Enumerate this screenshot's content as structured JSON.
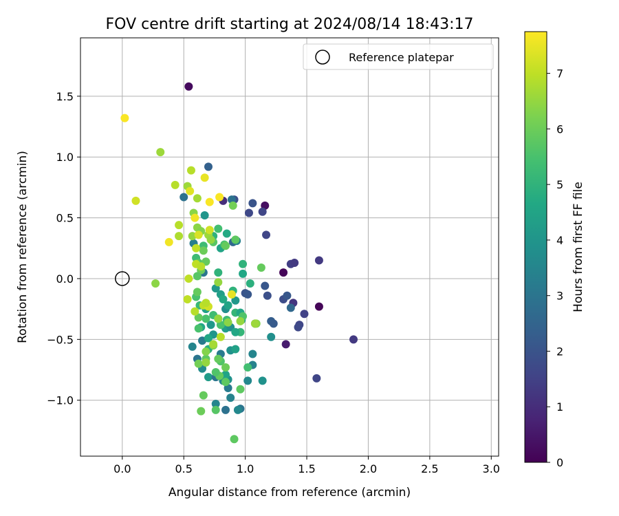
{
  "chart_data": {
    "type": "scatter",
    "title": "FOV centre drift starting at 2024/08/14 18:43:17",
    "xlabel": "Angular distance from reference (arcmin)",
    "ylabel": "Rotation from reference (arcmin)",
    "colorbar_label": "Hours from first FF file",
    "xlim": [
      -0.34,
      3.06
    ],
    "ylim": [
      -1.46,
      1.98
    ],
    "x_ticks": [
      0.0,
      0.5,
      1.0,
      1.5,
      2.0,
      2.5,
      3.0
    ],
    "x_tick_labels": [
      "0.0",
      "0.5",
      "1.0",
      "1.5",
      "2.0",
      "2.5",
      "3.0"
    ],
    "y_ticks": [
      -1.0,
      -0.5,
      0.0,
      0.5,
      1.0,
      1.5
    ],
    "y_tick_labels": [
      "−1.0",
      "−0.5",
      "0.0",
      "0.5",
      "1.0",
      "1.5"
    ],
    "colorbar_range": [
      0,
      7.75
    ],
    "colorbar_ticks": [
      0,
      1,
      2,
      3,
      4,
      5,
      6,
      7
    ],
    "colorbar_tick_labels": [
      "0",
      "1",
      "2",
      "3",
      "4",
      "5",
      "6",
      "7"
    ],
    "colormap": "viridis",
    "grid": true,
    "legend": {
      "placement": "top-right",
      "label": "Reference platepar"
    },
    "reference_point": {
      "x": 0.0,
      "y": 0.0
    },
    "series": [
      {
        "points": [
          {
            "x": 0.54,
            "y": 1.58,
            "c": 0.2
          },
          {
            "x": 1.16,
            "y": 0.6,
            "c": 0.3
          },
          {
            "x": 1.31,
            "y": 0.05,
            "c": 0.1
          },
          {
            "x": 1.6,
            "y": -0.23,
            "c": 0.1
          },
          {
            "x": 1.33,
            "y": -0.54,
            "c": 0.6
          },
          {
            "x": 1.88,
            "y": -0.5,
            "c": 1.3
          },
          {
            "x": 1.58,
            "y": -0.82,
            "c": 1.6
          },
          {
            "x": 1.6,
            "y": 0.15,
            "c": 1.3
          },
          {
            "x": 1.37,
            "y": 0.12,
            "c": 1.4
          },
          {
            "x": 1.4,
            "y": 0.13,
            "c": 1.3
          },
          {
            "x": 1.48,
            "y": -0.29,
            "c": 1.5
          },
          {
            "x": 1.44,
            "y": -0.38,
            "c": 1.6
          },
          {
            "x": 1.43,
            "y": -0.4,
            "c": 1.7
          },
          {
            "x": 1.39,
            "y": -0.2,
            "c": 1.2
          },
          {
            "x": 1.31,
            "y": -0.17,
            "c": 1.8
          },
          {
            "x": 1.34,
            "y": -0.14,
            "c": 2.1
          },
          {
            "x": 1.37,
            "y": -0.24,
            "c": 2.6
          },
          {
            "x": 1.17,
            "y": 0.36,
            "c": 1.6
          },
          {
            "x": 1.14,
            "y": 0.55,
            "c": 1.6
          },
          {
            "x": 1.06,
            "y": 0.62,
            "c": 2.0
          },
          {
            "x": 1.03,
            "y": 0.54,
            "c": 1.7
          },
          {
            "x": 0.91,
            "y": 0.65,
            "c": 1.9
          },
          {
            "x": 0.82,
            "y": 0.64,
            "c": 1.0
          },
          {
            "x": 0.7,
            "y": 0.92,
            "c": 2.4
          },
          {
            "x": 0.5,
            "y": 0.67,
            "c": 2.9
          },
          {
            "x": 1.16,
            "y": -0.06,
            "c": 2.1
          },
          {
            "x": 1.18,
            "y": -0.14,
            "c": 1.9
          },
          {
            "x": 1.21,
            "y": -0.35,
            "c": 2.3
          },
          {
            "x": 1.23,
            "y": -0.37,
            "c": 2.2
          },
          {
            "x": 1.08,
            "y": -0.37,
            "c": 2.6
          },
          {
            "x": 1.0,
            "y": -0.12,
            "c": 2.0
          },
          {
            "x": 1.02,
            "y": -0.13,
            "c": 2.1
          },
          {
            "x": 1.21,
            "y": -0.48,
            "c": 3.8
          },
          {
            "x": 1.14,
            "y": -0.84,
            "c": 3.9
          },
          {
            "x": 1.06,
            "y": -0.71,
            "c": 3.4
          },
          {
            "x": 1.02,
            "y": -0.84,
            "c": 3.6
          },
          {
            "x": 1.06,
            "y": -0.62,
            "c": 3.5
          },
          {
            "x": 0.96,
            "y": -1.07,
            "c": 3.0
          },
          {
            "x": 0.94,
            "y": -1.08,
            "c": 3.6
          },
          {
            "x": 0.84,
            "y": -1.08,
            "c": 2.9
          },
          {
            "x": 0.76,
            "y": -1.03,
            "c": 3.5
          },
          {
            "x": 0.88,
            "y": -0.98,
            "c": 3.4
          },
          {
            "x": 0.86,
            "y": -0.9,
            "c": 3.2
          },
          {
            "x": 0.9,
            "y": 0.3,
            "c": 2.6
          },
          {
            "x": 0.93,
            "y": 0.31,
            "c": 3.4
          },
          {
            "x": 0.89,
            "y": 0.65,
            "c": 2.9
          },
          {
            "x": 0.58,
            "y": 0.29,
            "c": 3.3
          },
          {
            "x": 0.66,
            "y": 0.05,
            "c": 3.0
          },
          {
            "x": 0.67,
            "y": 0.52,
            "c": 4.0
          },
          {
            "x": 0.8,
            "y": 0.25,
            "c": 4.5
          },
          {
            "x": 0.85,
            "y": 0.37,
            "c": 4.7
          },
          {
            "x": 0.83,
            "y": 0.28,
            "c": 5.5
          },
          {
            "x": 0.98,
            "y": 0.12,
            "c": 5.0
          },
          {
            "x": 0.98,
            "y": 0.04,
            "c": 4.6
          },
          {
            "x": 1.04,
            "y": -0.04,
            "c": 4.9
          },
          {
            "x": 0.97,
            "y": -0.34,
            "c": 4.4
          },
          {
            "x": 0.92,
            "y": -0.18,
            "c": 4.1
          },
          {
            "x": 0.9,
            "y": -0.1,
            "c": 5.0
          },
          {
            "x": 0.84,
            "y": -0.25,
            "c": 3.8
          },
          {
            "x": 0.78,
            "y": -0.33,
            "c": 4.8
          },
          {
            "x": 0.72,
            "y": -0.38,
            "c": 4.1
          },
          {
            "x": 0.68,
            "y": -0.33,
            "c": 5.5
          },
          {
            "x": 0.64,
            "y": -0.4,
            "c": 4.6
          },
          {
            "x": 0.7,
            "y": -0.58,
            "c": 4.9
          },
          {
            "x": 0.65,
            "y": -0.51,
            "c": 3.2
          },
          {
            "x": 0.57,
            "y": -0.56,
            "c": 3.5
          },
          {
            "x": 0.61,
            "y": -0.66,
            "c": 3.0
          },
          {
            "x": 0.65,
            "y": -0.74,
            "c": 3.7
          },
          {
            "x": 0.7,
            "y": -0.81,
            "c": 4.2
          },
          {
            "x": 0.76,
            "y": -0.81,
            "c": 3.0
          },
          {
            "x": 0.82,
            "y": -0.84,
            "c": 3.5
          },
          {
            "x": 0.86,
            "y": -0.83,
            "c": 3.9
          },
          {
            "x": 0.84,
            "y": -0.79,
            "c": 4.5
          },
          {
            "x": 0.8,
            "y": -0.62,
            "c": 3.2
          },
          {
            "x": 0.88,
            "y": -0.59,
            "c": 3.9
          },
          {
            "x": 0.92,
            "y": -0.58,
            "c": 4.4
          },
          {
            "x": 0.84,
            "y": -0.41,
            "c": 4.3
          },
          {
            "x": 0.88,
            "y": -0.4,
            "c": 3.8
          },
          {
            "x": 0.74,
            "y": -0.46,
            "c": 4.0
          },
          {
            "x": 0.7,
            "y": -0.49,
            "c": 4.6
          },
          {
            "x": 0.74,
            "y": 0.35,
            "c": 5.0
          },
          {
            "x": 0.78,
            "y": 0.05,
            "c": 5.0
          },
          {
            "x": 0.76,
            "y": -0.08,
            "c": 4.1
          },
          {
            "x": 0.8,
            "y": -0.13,
            "c": 4.3
          },
          {
            "x": 0.82,
            "y": -0.17,
            "c": 4.7
          },
          {
            "x": 0.86,
            "y": -0.22,
            "c": 4.5
          },
          {
            "x": 0.92,
            "y": -0.28,
            "c": 5.1
          },
          {
            "x": 0.96,
            "y": -0.28,
            "c": 4.6
          },
          {
            "x": 0.98,
            "y": -0.31,
            "c": 5.6
          },
          {
            "x": 0.96,
            "y": -0.44,
            "c": 5.1
          },
          {
            "x": 0.92,
            "y": -0.44,
            "c": 4.6
          },
          {
            "x": 0.85,
            "y": -0.34,
            "c": 5.3
          },
          {
            "x": 0.8,
            "y": -0.38,
            "c": 5.5
          },
          {
            "x": 0.74,
            "y": -0.3,
            "c": 5.3
          },
          {
            "x": 0.68,
            "y": -0.25,
            "c": 4.4
          },
          {
            "x": 0.63,
            "y": -0.22,
            "c": 5.2
          },
          {
            "x": 0.6,
            "y": -0.15,
            "c": 5.5
          },
          {
            "x": 0.62,
            "y": -0.32,
            "c": 5.9
          },
          {
            "x": 0.62,
            "y": -0.41,
            "c": 5.5
          },
          {
            "x": 0.66,
            "y": 0.27,
            "c": 5.3
          },
          {
            "x": 0.6,
            "y": 0.17,
            "c": 5.3
          },
          {
            "x": 0.62,
            "y": 0.13,
            "c": 5.7
          },
          {
            "x": 0.66,
            "y": 0.23,
            "c": 6.0
          },
          {
            "x": 0.68,
            "y": 0.14,
            "c": 5.9
          },
          {
            "x": 0.64,
            "y": 0.07,
            "c": 6.0
          },
          {
            "x": 0.61,
            "y": 0.02,
            "c": 5.7
          },
          {
            "x": 0.74,
            "y": 0.3,
            "c": 5.7
          },
          {
            "x": 0.78,
            "y": 0.41,
            "c": 5.4
          },
          {
            "x": 0.84,
            "y": 0.27,
            "c": 5.9
          },
          {
            "x": 0.9,
            "y": 0.6,
            "c": 6.1
          },
          {
            "x": 0.92,
            "y": 0.32,
            "c": 5.8
          },
          {
            "x": 1.13,
            "y": 0.09,
            "c": 5.9
          },
          {
            "x": 1.09,
            "y": -0.37,
            "c": 6.3
          },
          {
            "x": 1.02,
            "y": -0.73,
            "c": 5.4
          },
          {
            "x": 0.96,
            "y": -0.91,
            "c": 5.8
          },
          {
            "x": 0.91,
            "y": -1.32,
            "c": 5.8
          },
          {
            "x": 0.84,
            "y": -0.85,
            "c": 5.8
          },
          {
            "x": 0.79,
            "y": -0.8,
            "c": 5.9
          },
          {
            "x": 0.76,
            "y": -0.77,
            "c": 5.6
          },
          {
            "x": 0.8,
            "y": -0.68,
            "c": 5.6
          },
          {
            "x": 0.84,
            "y": -0.73,
            "c": 6.0
          },
          {
            "x": 0.78,
            "y": -0.66,
            "c": 5.9
          },
          {
            "x": 0.74,
            "y": -0.55,
            "c": 6.2
          },
          {
            "x": 0.68,
            "y": -0.66,
            "c": 5.8
          },
          {
            "x": 0.68,
            "y": -0.6,
            "c": 6.3
          },
          {
            "x": 0.62,
            "y": -0.7,
            "c": 6.1
          },
          {
            "x": 0.66,
            "y": -0.96,
            "c": 5.9
          },
          {
            "x": 0.64,
            "y": -1.09,
            "c": 6.0
          },
          {
            "x": 0.76,
            "y": -1.08,
            "c": 5.7
          },
          {
            "x": 0.61,
            "y": -0.11,
            "c": 5.9
          },
          {
            "x": 0.58,
            "y": 0.54,
            "c": 6.4
          },
          {
            "x": 0.57,
            "y": 0.35,
            "c": 6.5
          },
          {
            "x": 0.7,
            "y": 0.36,
            "c": 6.6
          },
          {
            "x": 0.72,
            "y": 0.32,
            "c": 6.5
          },
          {
            "x": 0.61,
            "y": 0.42,
            "c": 6.4
          },
          {
            "x": 0.64,
            "y": 0.39,
            "c": 6.3
          },
          {
            "x": 0.78,
            "y": -0.03,
            "c": 6.5
          },
          {
            "x": 0.78,
            "y": -0.33,
            "c": 6.5
          },
          {
            "x": 0.86,
            "y": -0.36,
            "c": 6.4
          },
          {
            "x": 0.96,
            "y": -0.35,
            "c": 6.5
          },
          {
            "x": 1.08,
            "y": -0.37,
            "c": 6.6
          },
          {
            "x": 0.8,
            "y": -0.48,
            "c": 6.9
          },
          {
            "x": 0.74,
            "y": -0.54,
            "c": 6.7
          },
          {
            "x": 0.68,
            "y": -0.69,
            "c": 6.5
          },
          {
            "x": 0.59,
            "y": -0.27,
            "c": 6.9
          },
          {
            "x": 0.53,
            "y": -0.17,
            "c": 7.0
          },
          {
            "x": 0.54,
            "y": 0.0,
            "c": 7.0
          },
          {
            "x": 0.6,
            "y": 0.25,
            "c": 7.0
          },
          {
            "x": 0.6,
            "y": 0.12,
            "c": 7.0
          },
          {
            "x": 0.64,
            "y": 0.1,
            "c": 6.9
          },
          {
            "x": 0.46,
            "y": 0.44,
            "c": 6.9
          },
          {
            "x": 0.46,
            "y": 0.35,
            "c": 6.8
          },
          {
            "x": 0.53,
            "y": 0.76,
            "c": 6.6
          },
          {
            "x": 0.56,
            "y": 0.89,
            "c": 6.9
          },
          {
            "x": 0.43,
            "y": 0.77,
            "c": 6.9
          },
          {
            "x": 0.31,
            "y": 1.04,
            "c": 6.6
          },
          {
            "x": 0.27,
            "y": -0.04,
            "c": 6.4
          },
          {
            "x": 0.61,
            "y": 0.66,
            "c": 6.7
          },
          {
            "x": 0.66,
            "y": -0.22,
            "c": 7.0
          },
          {
            "x": 0.7,
            "y": -0.23,
            "c": 7.2
          },
          {
            "x": 0.68,
            "y": -0.2,
            "c": 6.9
          },
          {
            "x": 0.71,
            "y": 0.4,
            "c": 7.2
          },
          {
            "x": 0.62,
            "y": 0.36,
            "c": 7.3
          },
          {
            "x": 0.55,
            "y": 0.72,
            "c": 7.4
          },
          {
            "x": 0.59,
            "y": 0.5,
            "c": 7.6
          },
          {
            "x": 0.67,
            "y": 0.83,
            "c": 7.5
          },
          {
            "x": 0.71,
            "y": 0.63,
            "c": 7.7
          },
          {
            "x": 0.79,
            "y": 0.67,
            "c": 7.7
          },
          {
            "x": 0.89,
            "y": -0.13,
            "c": 7.5
          },
          {
            "x": 0.38,
            "y": 0.3,
            "c": 7.6
          },
          {
            "x": 0.11,
            "y": 0.64,
            "c": 7.2
          },
          {
            "x": 0.02,
            "y": 1.32,
            "c": 7.7
          }
        ]
      }
    ]
  }
}
